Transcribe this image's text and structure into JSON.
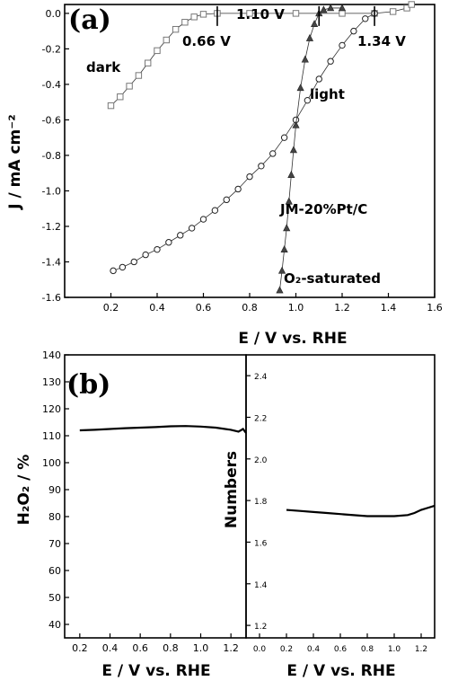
{
  "chart_data": [
    {
      "panel": "(a)",
      "type": "line",
      "xlabel": "E / V vs. RHE",
      "ylabel": "J / mA cm⁻²",
      "xlim": [
        0.0,
        1.6
      ],
      "ylim": [
        -1.6,
        0.05
      ],
      "xticks": [
        0.2,
        0.4,
        0.6,
        0.8,
        1.0,
        1.2,
        1.4,
        1.6
      ],
      "yticks": [
        0.0,
        -0.2,
        -0.4,
        -0.6,
        -0.8,
        -1.0,
        -1.2,
        -1.4,
        -1.6
      ],
      "xtick_labels": [
        "0.2",
        "0.4",
        "0.6",
        "0.8",
        "1.0",
        "1.2",
        "1.4",
        "1.6"
      ],
      "ytick_labels": [
        "0.0",
        "-0.2",
        "-0.4",
        "-0.6",
        "-0.8",
        "-1.0",
        "-1.2",
        "-1.4",
        "-1.6"
      ],
      "series": [
        {
          "name": "dark",
          "marker": "open-square",
          "x": [
            0.2,
            0.24,
            0.28,
            0.32,
            0.36,
            0.4,
            0.44,
            0.48,
            0.52,
            0.56,
            0.6,
            0.66,
            0.8,
            1.0,
            1.2,
            1.34,
            1.42,
            1.48,
            1.5
          ],
          "y": [
            -0.52,
            -0.47,
            -0.41,
            -0.35,
            -0.28,
            -0.21,
            -0.15,
            -0.09,
            -0.05,
            -0.02,
            -0.005,
            0.0,
            0.0,
            0.0,
            0.0,
            0.0,
            0.01,
            0.03,
            0.05
          ]
        },
        {
          "name": "light",
          "marker": "open-circle",
          "x": [
            0.21,
            0.25,
            0.3,
            0.35,
            0.4,
            0.45,
            0.5,
            0.55,
            0.6,
            0.65,
            0.7,
            0.75,
            0.8,
            0.85,
            0.9,
            0.95,
            1.0,
            1.05,
            1.1,
            1.15,
            1.2,
            1.25,
            1.3,
            1.34
          ],
          "y": [
            -1.45,
            -1.43,
            -1.4,
            -1.36,
            -1.33,
            -1.29,
            -1.25,
            -1.21,
            -1.16,
            -1.11,
            -1.05,
            -0.99,
            -0.92,
            -0.86,
            -0.79,
            -0.7,
            -0.6,
            -0.49,
            -0.37,
            -0.27,
            -0.18,
            -0.1,
            -0.03,
            0.0
          ]
        },
        {
          "name": "JM-20%Pt/C",
          "marker": "filled-triangle",
          "x": [
            0.93,
            0.94,
            0.95,
            0.96,
            0.97,
            0.98,
            0.99,
            1.0,
            1.02,
            1.04,
            1.06,
            1.08,
            1.1,
            1.12,
            1.15,
            1.2
          ],
          "y": [
            -1.56,
            -1.45,
            -1.33,
            -1.21,
            -1.06,
            -0.91,
            -0.77,
            -0.63,
            -0.42,
            -0.26,
            -0.14,
            -0.06,
            0.0,
            0.02,
            0.03,
            0.03
          ]
        }
      ],
      "annotations": [
        {
          "text": "1.10 V",
          "marker_x": 1.1
        },
        {
          "text": "0.66 V",
          "marker_x": 0.66
        },
        {
          "text": "1.34 V",
          "marker_x": 1.34
        },
        {
          "text": "dark"
        },
        {
          "text": "light"
        },
        {
          "text": "JM-20%Pt/C"
        },
        {
          "text": "O₂-saturated"
        }
      ],
      "grid": false,
      "legend": "none"
    },
    {
      "panel": "(b)",
      "type": "line",
      "xlabel": "E / V vs. RHE",
      "ylabel": "H₂O₂ / %",
      "xlim": [
        0.1,
        1.3
      ],
      "ylim": [
        35,
        140
      ],
      "xticks": [
        0.2,
        0.4,
        0.6,
        0.8,
        1.0,
        1.2
      ],
      "yticks": [
        40,
        50,
        60,
        70,
        80,
        90,
        100,
        110,
        120,
        130,
        140
      ],
      "xtick_labels": [
        "0.2",
        "0.4",
        "0.6",
        "0.8",
        "1.0",
        "1.2"
      ],
      "ytick_labels": [
        "40",
        "50",
        "60",
        "70",
        "80",
        "90",
        "100",
        "110",
        "120",
        "130",
        "140"
      ],
      "series": [
        {
          "x": [
            0.2,
            0.3,
            0.4,
            0.5,
            0.6,
            0.7,
            0.8,
            0.9,
            1.0,
            1.1,
            1.2,
            1.25,
            1.28,
            1.3
          ],
          "y": [
            112.0,
            112.2,
            112.5,
            112.8,
            113.0,
            113.2,
            113.5,
            113.6,
            113.4,
            113.0,
            112.2,
            111.5,
            112.5,
            111.0
          ]
        }
      ],
      "grid": false,
      "legend": "none"
    },
    {
      "panel": "(b)",
      "type": "line",
      "xlabel": "E / V vs. RHE",
      "ylabel": "Numbers",
      "xlim": [
        -0.1,
        1.3
      ],
      "ylim": [
        1.14,
        2.5
      ],
      "xticks": [
        0.0,
        0.2,
        0.4,
        0.6,
        0.8,
        1.0,
        1.2
      ],
      "yticks": [
        1.2,
        1.4,
        1.6,
        1.8,
        2.0,
        2.2,
        2.4
      ],
      "xtick_labels": [
        "0.0",
        "0.2",
        "0.4",
        "0.6",
        "0.8",
        "1.0",
        "1.2"
      ],
      "ytick_labels": [
        "1.2",
        "1.4",
        "1.6",
        "1.8",
        "2.0",
        "2.2",
        "2.4"
      ],
      "series": [
        {
          "x": [
            0.2,
            0.3,
            0.4,
            0.5,
            0.6,
            0.7,
            0.8,
            0.9,
            1.0,
            1.1,
            1.15,
            1.2,
            1.25,
            1.3
          ],
          "y": [
            1.755,
            1.75,
            1.745,
            1.74,
            1.735,
            1.73,
            1.725,
            1.725,
            1.725,
            1.73,
            1.74,
            1.755,
            1.765,
            1.775
          ]
        }
      ],
      "grid": false,
      "legend": "none"
    }
  ]
}
